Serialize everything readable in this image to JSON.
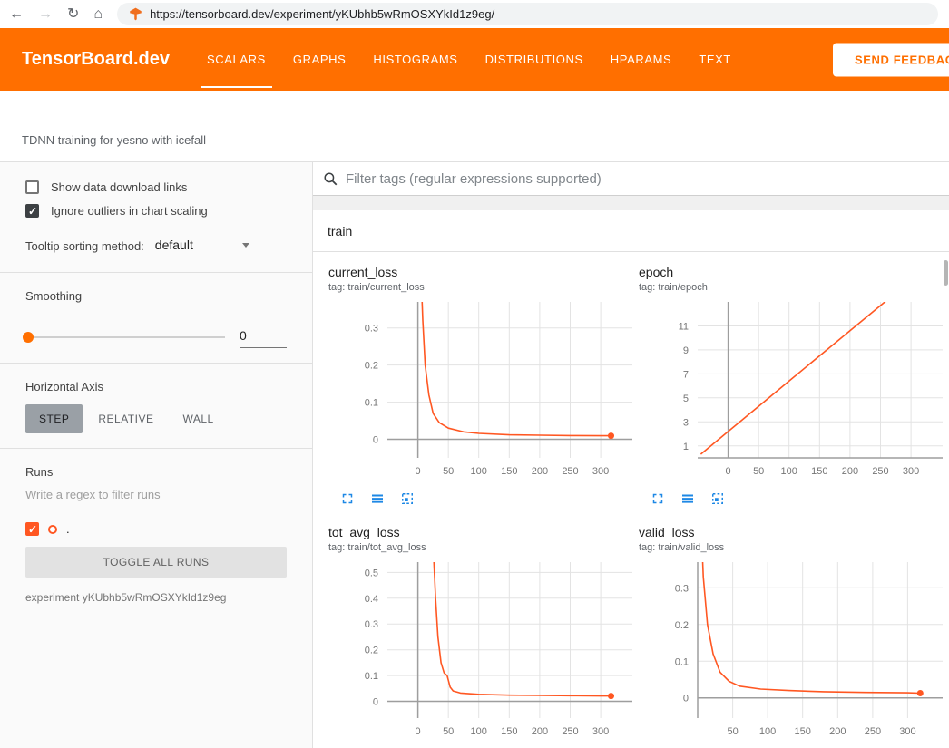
{
  "browser": {
    "url": "https://tensorboard.dev/experiment/yKUbhb5wRmOSXYkId1z9eg/",
    "icons": {
      "back": "←",
      "forward": "→",
      "reload": "↻",
      "home": "⌂"
    }
  },
  "header": {
    "logo": "TensorBoard.dev",
    "tabs": [
      {
        "label": "SCALARS",
        "active": true
      },
      {
        "label": "GRAPHS",
        "active": false
      },
      {
        "label": "HISTOGRAMS",
        "active": false
      },
      {
        "label": "DISTRIBUTIONS",
        "active": false
      },
      {
        "label": "HPARAMS",
        "active": false
      },
      {
        "label": "TEXT",
        "active": false
      }
    ],
    "feedback_button": "SEND FEEDBACK"
  },
  "experiment_title": "TDNN training for yesno with icefall",
  "sidebar": {
    "show_download": {
      "label": "Show data download links",
      "checked": false
    },
    "ignore_outliers": {
      "label": "Ignore outliers in chart scaling",
      "checked": true
    },
    "tooltip_sorting": {
      "label": "Tooltip sorting method:",
      "value": "default"
    },
    "smoothing": {
      "label": "Smoothing",
      "value": "0"
    },
    "horizontal_axis": {
      "label": "Horizontal Axis",
      "options": [
        "STEP",
        "RELATIVE",
        "WALL"
      ],
      "selected": "STEP"
    },
    "runs": {
      "label": "Runs",
      "filter_placeholder": "Write a regex to filter runs",
      "items": [
        {
          "name": ".",
          "checked": true,
          "color": "#ff5722"
        }
      ],
      "toggle_button": "TOGGLE ALL RUNS",
      "experiment_label": "experiment yKUbhb5wRmOSXYkId1z9eg"
    }
  },
  "main": {
    "filter_placeholder": "Filter tags (regular expressions supported)",
    "group_label": "train"
  },
  "colors": {
    "header": "#ff6f00",
    "line": "#ff5722",
    "icon_blue": "#1e88e5"
  },
  "chart_data": [
    {
      "type": "line",
      "title": "current_loss",
      "tag": "tag: train/current_loss",
      "xlim": [
        -50,
        352
      ],
      "ylim": [
        -0.05,
        0.37
      ],
      "xticks": [
        0,
        50,
        100,
        150,
        200,
        250,
        300
      ],
      "yticks": [
        0,
        0.1,
        0.2,
        0.3
      ],
      "grid": true,
      "series": [
        {
          "name": ".",
          "color": "#ff5722",
          "end_dot": true,
          "x": [
            4,
            8,
            12,
            18,
            25,
            35,
            50,
            75,
            100,
            150,
            200,
            250,
            300,
            317
          ],
          "y": [
            0.5,
            0.32,
            0.2,
            0.12,
            0.07,
            0.045,
            0.03,
            0.02,
            0.016,
            0.012,
            0.011,
            0.01,
            0.0095,
            0.0095
          ]
        }
      ]
    },
    {
      "type": "line",
      "title": "epoch",
      "tag": "tag: train/epoch",
      "xlim": [
        -50,
        352
      ],
      "ylim": [
        0,
        13
      ],
      "xticks": [
        0,
        50,
        100,
        150,
        200,
        250,
        300
      ],
      "yticks": [
        1,
        3,
        5,
        7,
        9,
        11
      ],
      "grid": true,
      "series": [
        {
          "name": ".",
          "color": "#ff5722",
          "end_dot": false,
          "x": [
            -45,
            0,
            50,
            100,
            150,
            200,
            250,
            300
          ],
          "y": [
            0.3,
            2.2,
            4.3,
            6.4,
            8.5,
            10.6,
            12.7,
            14.8
          ]
        }
      ]
    },
    {
      "type": "line",
      "title": "tot_avg_loss",
      "tag": "tag: train/tot_avg_loss",
      "xlim": [
        -50,
        352
      ],
      "ylim": [
        -0.065,
        0.54
      ],
      "xticks": [
        0,
        50,
        100,
        150,
        200,
        250,
        300
      ],
      "yticks": [
        0,
        0.1,
        0.2,
        0.3,
        0.4,
        0.5
      ],
      "grid": true,
      "series": [
        {
          "name": ".",
          "color": "#ff5722",
          "end_dot": true,
          "x": [
            26,
            29,
            33,
            38,
            43,
            48,
            53,
            58,
            70,
            100,
            150,
            200,
            250,
            300,
            317
          ],
          "y": [
            0.56,
            0.4,
            0.25,
            0.15,
            0.11,
            0.1,
            0.055,
            0.04,
            0.032,
            0.027,
            0.024,
            0.023,
            0.022,
            0.021,
            0.021
          ]
        }
      ]
    },
    {
      "type": "line",
      "title": "valid_loss",
      "tag": "tag: train/valid_loss",
      "xlim": [
        0,
        350
      ],
      "ylim": [
        -0.055,
        0.37
      ],
      "xticks": [
        50,
        100,
        150,
        200,
        250,
        300
      ],
      "yticks": [
        0,
        0.1,
        0.2,
        0.3
      ],
      "grid": true,
      "series": [
        {
          "name": ".",
          "color": "#ff5722",
          "end_dot": true,
          "x": [
            4,
            8,
            14,
            22,
            32,
            45,
            60,
            90,
            130,
            180,
            240,
            300,
            318
          ],
          "y": [
            0.52,
            0.33,
            0.2,
            0.12,
            0.07,
            0.045,
            0.032,
            0.024,
            0.02,
            0.017,
            0.015,
            0.014,
            0.013
          ]
        }
      ]
    }
  ]
}
